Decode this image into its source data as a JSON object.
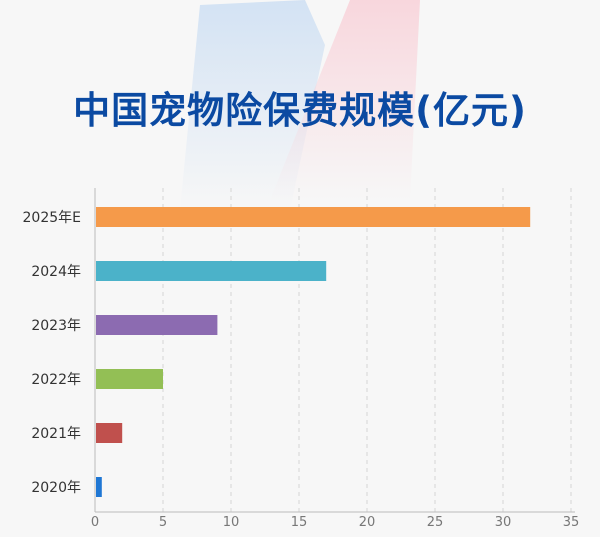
{
  "chart_data": {
    "type": "bar",
    "orientation": "horizontal",
    "title": "中国宠物险保费规模(亿元)",
    "categories": [
      "2025年E",
      "2024年",
      "2023年",
      "2022年",
      "2021年",
      "2020年"
    ],
    "values": [
      32,
      17,
      9,
      5,
      2,
      0.5
    ],
    "colors": [
      "#f59a4a",
      "#4bb2c9",
      "#8c6bb1",
      "#93bf55",
      "#c0504d",
      "#1f77d4"
    ],
    "xlabel": "",
    "ylabel": "",
    "xlim": [
      0,
      35
    ],
    "xticks": [
      0,
      5,
      10,
      15,
      20,
      25,
      30,
      35
    ],
    "grid": "vertical dashed",
    "title_color": "#0b4aa2"
  }
}
